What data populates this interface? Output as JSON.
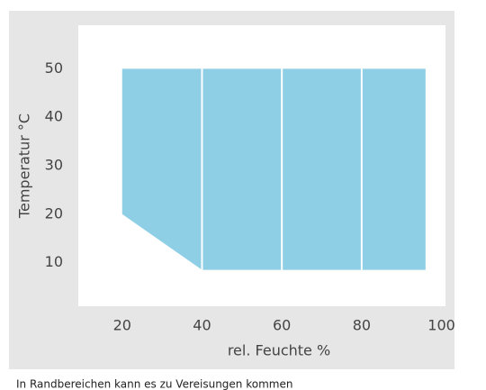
{
  "chart_data": {
    "type": "area",
    "x_label": "rel. Feuchte %",
    "y_label": "Temperatur °C",
    "x": [
      20,
      20,
      40,
      96,
      96
    ],
    "values": [
      50,
      20,
      8.5,
      8.5,
      50
    ],
    "color": "#8ecfe6",
    "dividers": [
      40,
      60,
      80
    ],
    "divider_color": "#ffffff",
    "xlim": [
      9,
      101
    ],
    "xticks": [
      20,
      40,
      60,
      80,
      100
    ],
    "ylim": [
      1,
      59
    ],
    "yticks": [
      10,
      20,
      30,
      40,
      50
    ],
    "grid": false,
    "caption": "In Randbereichen kann es zu Vereisungen kommen"
  }
}
